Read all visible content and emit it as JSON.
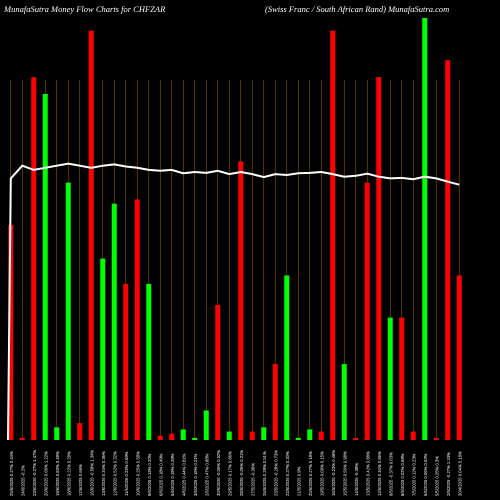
{
  "header": {
    "left_title": "MunafaSutra  Money  Flow  Charts for CHFZAR",
    "right_title": "(Swiss Franc / South African  Rand) MunafaSutra.com"
  },
  "colors": {
    "background": "#000000",
    "up": "#00ff00",
    "down": "#ff0000",
    "grid": "#8a5a00",
    "line": "#ffffff",
    "label": "#ffffff"
  },
  "chart_data": {
    "type": "bar",
    "title": "MunafaSutra  Money  Flow  Charts for CHFZAR",
    "ylim": [
      0,
      100
    ],
    "line_ylim": [
      0,
      100
    ],
    "bars": [
      {
        "label": "25/6/2025 0.27% 0.44%",
        "value": 51,
        "color": "down"
      },
      {
        "label": "24/6/2025 -0.2%",
        "value": 0.5,
        "color": "down"
      },
      {
        "label": "23/6/2025 -0.27% 1.47%",
        "value": 86,
        "color": "down"
      },
      {
        "label": "20/6/2025 0.66% 1.22%",
        "value": 82,
        "color": "up"
      },
      {
        "label": "19/6/2025 0.83% 0.48%",
        "value": 3,
        "color": "up"
      },
      {
        "label": "18/6/2025 0.22% 0.29%",
        "value": 61,
        "color": "up"
      },
      {
        "label": "17/6/2025 0.66%",
        "value": 4,
        "color": "down"
      },
      {
        "label": "16/6/2025 -0.58% 1.34%",
        "value": 97,
        "color": "down"
      },
      {
        "label": "13/6/2025 0.34% 0.36%",
        "value": 43,
        "color": "up"
      },
      {
        "label": "12/6/2025 0.52% 0.32%",
        "value": 56,
        "color": "up"
      },
      {
        "label": "11/6/2025 0.23% 0.69%",
        "value": 37,
        "color": "down"
      },
      {
        "label": "10/6/2025 0.25% 0.58%",
        "value": 57,
        "color": "down"
      },
      {
        "label": "9/6/2025 0.13% 0.20%",
        "value": 37,
        "color": "up"
      },
      {
        "label": "6/6/2025 0.18% 0.49%",
        "value": 1,
        "color": "down"
      },
      {
        "label": "5/6/2025 0.19% 0.28%",
        "value": 1.5,
        "color": "down"
      },
      {
        "label": "4/6/2025 0.44% 0.81%",
        "value": 2.5,
        "color": "up"
      },
      {
        "label": "3/6/2025 0.15% 0.21%",
        "value": 0.5,
        "color": "up"
      },
      {
        "label": "2/6/2025 0.47% 0.88%",
        "value": 7,
        "color": "up"
      },
      {
        "label": "30/5/2025 -0.05% 0.52%",
        "value": 32,
        "color": "down"
      },
      {
        "label": "29/5/2025 0.17% 0.86%",
        "value": 2,
        "color": "up"
      },
      {
        "label": "28/5/2025 -0.06% 0.21%",
        "value": 66,
        "color": "down"
      },
      {
        "label": "27/5/2025 -0.39%",
        "value": 2,
        "color": "down"
      },
      {
        "label": "26/5/2025 0.28% 0.51%",
        "value": 3,
        "color": "up"
      },
      {
        "label": "23/5/2025 -0.28% 0.73%",
        "value": 18,
        "color": "down"
      },
      {
        "label": "22/5/2025 0.27% 0.20%",
        "value": 39,
        "color": "up"
      },
      {
        "label": "21/5/2025 0.9%",
        "value": 0.5,
        "color": "up"
      },
      {
        "label": "20/5/2025 0.27% 0.18%",
        "value": 2.5,
        "color": "up"
      },
      {
        "label": "19/5/2025 0.09% 0.15%",
        "value": 2,
        "color": "down"
      },
      {
        "label": "16/5/2025 -0.23% 0.48%",
        "value": 97,
        "color": "down"
      },
      {
        "label": "15/5/2025 0.56% 0.98%",
        "value": 18,
        "color": "up"
      },
      {
        "label": "14/5/2025 -0.38%",
        "value": 0.5,
        "color": "down"
      },
      {
        "label": "13/5/2025 0.42% 0.88%",
        "value": 61,
        "color": "down"
      },
      {
        "label": "12/5/2025 0.34% 0.86%",
        "value": 86,
        "color": "down"
      },
      {
        "label": "9/5/2025 -0.37% 0.63%",
        "value": 29,
        "color": "up"
      },
      {
        "label": "8/5/2025 0.02% 0.68%",
        "value": 29,
        "color": "down"
      },
      {
        "label": "7/5/2025 0.12% 0.23%",
        "value": 2,
        "color": "down"
      },
      {
        "label": "6/5/2025 0.06% 0.62%",
        "value": 100,
        "color": "up"
      },
      {
        "label": "5/5/2025 0.25% 0.3%",
        "value": 0.5,
        "color": "down"
      },
      {
        "label": "2/5/2025 -0.27% 1.33%",
        "value": 90,
        "color": "down"
      },
      {
        "label": "30/4/2025 0.04% 0.18%",
        "value": 39,
        "color": "down"
      }
    ],
    "line_values": [
      62,
      65,
      64,
      64.5,
      65,
      65.5,
      65,
      64.5,
      65,
      65.3,
      64.8,
      64.5,
      64,
      63.8,
      64,
      63.2,
      63.5,
      63.3,
      63.8,
      63,
      63.5,
      63,
      62.3,
      63,
      62.8,
      63.2,
      63.3,
      63.5,
      63,
      62.4,
      62.6,
      63.1,
      62.4,
      62,
      62.1,
      61.8,
      62.4,
      62,
      61.2,
      60.5
    ]
  }
}
